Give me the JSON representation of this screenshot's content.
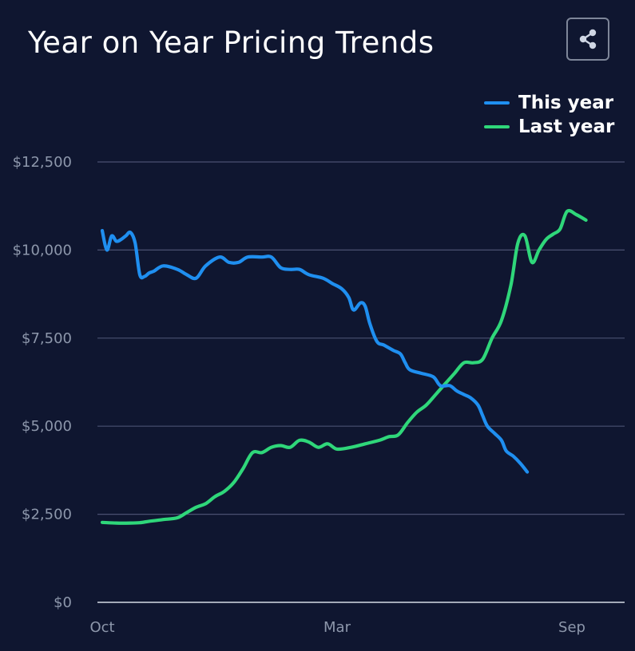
{
  "header": {
    "title": "Year on Year Pricing Trends",
    "share_icon": "share-icon"
  },
  "colors": {
    "background": "#0f1630",
    "this_year": "#1f8ff0",
    "last_year": "#2fd77a",
    "grid": "#4a5170",
    "axis_text": "#8d97ab"
  },
  "chart_data": {
    "type": "line",
    "title": "Year on Year Pricing Trends",
    "xlabel": "",
    "ylabel": "",
    "x_ticks": [
      {
        "label": "Oct",
        "x": 0
      },
      {
        "label": "Mar",
        "x": 5
      },
      {
        "label": "Sep",
        "x": 10
      }
    ],
    "xlim": [
      0,
      11.05
    ],
    "ylim": [
      0,
      12500
    ],
    "y_ticks": [
      {
        "value": 0,
        "label": "$0"
      },
      {
        "value": 2500,
        "label": "$2,500"
      },
      {
        "value": 5000,
        "label": "$5,000"
      },
      {
        "value": 7500,
        "label": "$7,500"
      },
      {
        "value": 10000,
        "label": "$10,000"
      },
      {
        "value": 12500,
        "label": "$12,500"
      }
    ],
    "grid": true,
    "legend_position": "top-right",
    "series": [
      {
        "name": "This year",
        "color": "#1f8ff0",
        "points": [
          [
            0.0,
            10550
          ],
          [
            0.1,
            10000
          ],
          [
            0.2,
            10400
          ],
          [
            0.3,
            10250
          ],
          [
            0.4,
            10300
          ],
          [
            0.5,
            10400
          ],
          [
            0.6,
            10500
          ],
          [
            0.7,
            10200
          ],
          [
            0.8,
            9300
          ],
          [
            0.9,
            9250
          ],
          [
            1.0,
            9350
          ],
          [
            1.1,
            9400
          ],
          [
            1.3,
            9550
          ],
          [
            1.6,
            9450
          ],
          [
            1.8,
            9300
          ],
          [
            2.0,
            9200
          ],
          [
            2.2,
            9550
          ],
          [
            2.5,
            9800
          ],
          [
            2.7,
            9650
          ],
          [
            2.9,
            9650
          ],
          [
            3.1,
            9800
          ],
          [
            3.4,
            9800
          ],
          [
            3.6,
            9800
          ],
          [
            3.8,
            9500
          ],
          [
            4.0,
            9450
          ],
          [
            4.2,
            9450
          ],
          [
            4.4,
            9300
          ],
          [
            4.7,
            9200
          ],
          [
            4.9,
            9050
          ],
          [
            5.1,
            8900
          ],
          [
            5.25,
            8650
          ],
          [
            5.35,
            8300
          ],
          [
            5.5,
            8500
          ],
          [
            5.6,
            8400
          ],
          [
            5.7,
            7900
          ],
          [
            5.85,
            7400
          ],
          [
            6.0,
            7300
          ],
          [
            6.2,
            7150
          ],
          [
            6.35,
            7050
          ],
          [
            6.45,
            6800
          ],
          [
            6.55,
            6600
          ],
          [
            6.8,
            6500
          ],
          [
            7.05,
            6400
          ],
          [
            7.2,
            6150
          ],
          [
            7.4,
            6150
          ],
          [
            7.55,
            6000
          ],
          [
            7.7,
            5900
          ],
          [
            7.85,
            5800
          ],
          [
            8.0,
            5600
          ],
          [
            8.1,
            5300
          ],
          [
            8.2,
            5000
          ],
          [
            8.35,
            4800
          ],
          [
            8.5,
            4600
          ],
          [
            8.6,
            4300
          ],
          [
            8.75,
            4150
          ],
          [
            8.9,
            3950
          ],
          [
            9.05,
            3700
          ]
        ]
      },
      {
        "name": "Last year",
        "color": "#2fd77a",
        "points": [
          [
            0.0,
            2270
          ],
          [
            0.3,
            2250
          ],
          [
            0.6,
            2250
          ],
          [
            0.8,
            2260
          ],
          [
            1.0,
            2300
          ],
          [
            1.3,
            2350
          ],
          [
            1.6,
            2400
          ],
          [
            1.8,
            2550
          ],
          [
            2.0,
            2700
          ],
          [
            2.2,
            2800
          ],
          [
            2.4,
            3000
          ],
          [
            2.6,
            3150
          ],
          [
            2.8,
            3400
          ],
          [
            3.0,
            3800
          ],
          [
            3.2,
            4250
          ],
          [
            3.4,
            4250
          ],
          [
            3.6,
            4400
          ],
          [
            3.8,
            4450
          ],
          [
            4.0,
            4400
          ],
          [
            4.2,
            4600
          ],
          [
            4.4,
            4550
          ],
          [
            4.6,
            4400
          ],
          [
            4.8,
            4500
          ],
          [
            5.0,
            4350
          ],
          [
            5.3,
            4400
          ],
          [
            5.6,
            4500
          ],
          [
            5.9,
            4600
          ],
          [
            6.1,
            4700
          ],
          [
            6.3,
            4750
          ],
          [
            6.5,
            5100
          ],
          [
            6.7,
            5400
          ],
          [
            6.9,
            5600
          ],
          [
            7.1,
            5900
          ],
          [
            7.3,
            6200
          ],
          [
            7.5,
            6500
          ],
          [
            7.7,
            6800
          ],
          [
            7.9,
            6800
          ],
          [
            8.1,
            6900
          ],
          [
            8.3,
            7500
          ],
          [
            8.5,
            8000
          ],
          [
            8.7,
            9000
          ],
          [
            8.85,
            10200
          ],
          [
            9.0,
            10400
          ],
          [
            9.15,
            9650
          ],
          [
            9.3,
            10000
          ],
          [
            9.45,
            10300
          ],
          [
            9.6,
            10450
          ],
          [
            9.75,
            10600
          ],
          [
            9.9,
            11100
          ],
          [
            10.1,
            11000
          ],
          [
            10.3,
            10850
          ]
        ]
      }
    ]
  }
}
